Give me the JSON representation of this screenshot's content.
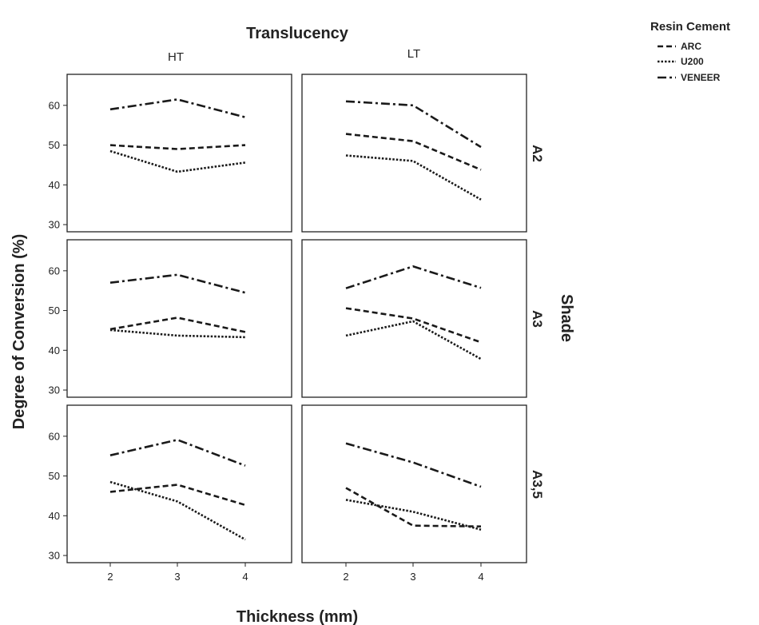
{
  "chart_data": {
    "type": "line",
    "title": "",
    "column_facet_title": "Translucency",
    "row_facet_title": "Shade",
    "columns": [
      "HT",
      "LT"
    ],
    "rows": [
      "A2",
      "A3",
      "A3,5"
    ],
    "xlabel": "Thickness (mm)",
    "ylabel": "Degree of Conversion (%)",
    "x": [
      2,
      3,
      4
    ],
    "x_ticks": [
      "2",
      "3",
      "4"
    ],
    "y_ticks": [
      "30",
      "40",
      "50",
      "60"
    ],
    "ylim": [
      29,
      67
    ],
    "grid": false,
    "legend": {
      "title": "Resin Cement",
      "placement": "top-right",
      "entries": [
        "ARC",
        "U200",
        "VENEER"
      ]
    },
    "line_styles": {
      "ARC": "dashed",
      "U200": "dotted",
      "VENEER": "dash-dot"
    },
    "line_color": "#1a1a1a",
    "panels": [
      {
        "row": "A2",
        "col": "HT",
        "series": [
          {
            "name": "ARC",
            "values": [
              50,
              49,
              50
            ]
          },
          {
            "name": "U200",
            "values": [
              48.5,
              43.3,
              45.6
            ]
          },
          {
            "name": "VENEER",
            "values": [
              59,
              61.5,
              57
            ]
          }
        ]
      },
      {
        "row": "A2",
        "col": "LT",
        "series": [
          {
            "name": "ARC",
            "values": [
              52.8,
              51,
              43.8
            ]
          },
          {
            "name": "U200",
            "values": [
              47.4,
              46,
              36.3
            ]
          },
          {
            "name": "VENEER",
            "values": [
              61,
              60,
              49.5
            ]
          }
        ]
      },
      {
        "row": "A3",
        "col": "HT",
        "series": [
          {
            "name": "ARC",
            "values": [
              45.3,
              48.2,
              44.6
            ]
          },
          {
            "name": "U200",
            "values": [
              45.1,
              43.7,
              43.3
            ]
          },
          {
            "name": "VENEER",
            "values": [
              57,
              59,
              54.5
            ]
          }
        ]
      },
      {
        "row": "A3",
        "col": "LT",
        "series": [
          {
            "name": "ARC",
            "values": [
              50.6,
              48,
              42
            ]
          },
          {
            "name": "U200",
            "values": [
              43.7,
              47.3,
              37.8
            ]
          },
          {
            "name": "VENEER",
            "values": [
              55.6,
              61.1,
              55.7
            ]
          }
        ]
      },
      {
        "row": "A3,5",
        "col": "HT",
        "series": [
          {
            "name": "ARC",
            "values": [
              46,
              47.8,
              42.7
            ]
          },
          {
            "name": "U200",
            "values": [
              48.5,
              43.6,
              34
            ]
          },
          {
            "name": "VENEER",
            "values": [
              55.2,
              59.1,
              52.6
            ]
          }
        ]
      },
      {
        "row": "A3,5",
        "col": "LT",
        "series": [
          {
            "name": "ARC",
            "values": [
              47,
              37.5,
              37.3
            ]
          },
          {
            "name": "U200",
            "values": [
              44,
              41,
              36.5
            ]
          },
          {
            "name": "VENEER",
            "values": [
              58.2,
              53.4,
              47.3
            ]
          }
        ]
      }
    ]
  }
}
